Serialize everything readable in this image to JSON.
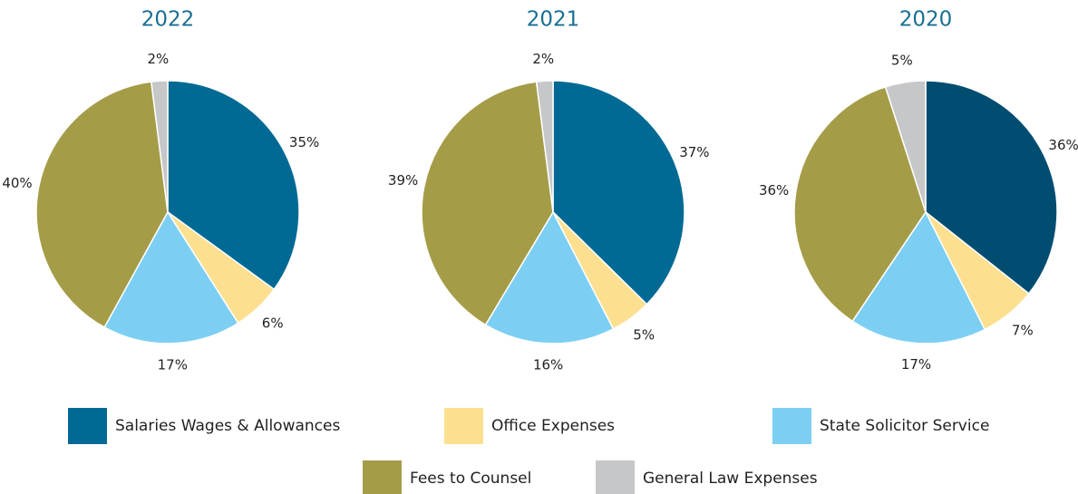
{
  "chart_data": [
    {
      "type": "pie",
      "title": "2022",
      "categories": [
        "Salaries Wages & Allowances",
        "Office Expenses",
        "State Solicitor Service",
        "Fees to Counsel",
        "General Law Expenses"
      ],
      "values": [
        35,
        6,
        17,
        40,
        2
      ],
      "value_labels": [
        "35%",
        "6%",
        "17%",
        "40%",
        "2%"
      ],
      "colors": [
        "#006a94",
        "#fde08f",
        "#7ccff3",
        "#a59c48",
        "#c6c7c8"
      ]
    },
    {
      "type": "pie",
      "title": "2021",
      "categories": [
        "Salaries Wages & Allowances",
        "Office Expenses",
        "State Solicitor Service",
        "Fees to Counsel",
        "General Law Expenses"
      ],
      "values": [
        37,
        5,
        16,
        39,
        2
      ],
      "value_labels": [
        "37%",
        "5%",
        "16%",
        "39%",
        "2%"
      ],
      "colors": [
        "#006a94",
        "#fde08f",
        "#7ccff3",
        "#a59c48",
        "#c6c7c8"
      ]
    },
    {
      "type": "pie",
      "title": "2020",
      "categories": [
        "Salaries Wages & Allowances",
        "Office Expenses",
        "State Solicitor Service",
        "Fees to Counsel",
        "General Law Expenses"
      ],
      "values": [
        36,
        7,
        17,
        36,
        5
      ],
      "value_labels": [
        "36%",
        "7%",
        "17%",
        "36%",
        "5%"
      ],
      "colors": [
        "#004d71",
        "#fde08f",
        "#7ccff3",
        "#a59c48",
        "#c6c7c8"
      ]
    }
  ]
}
